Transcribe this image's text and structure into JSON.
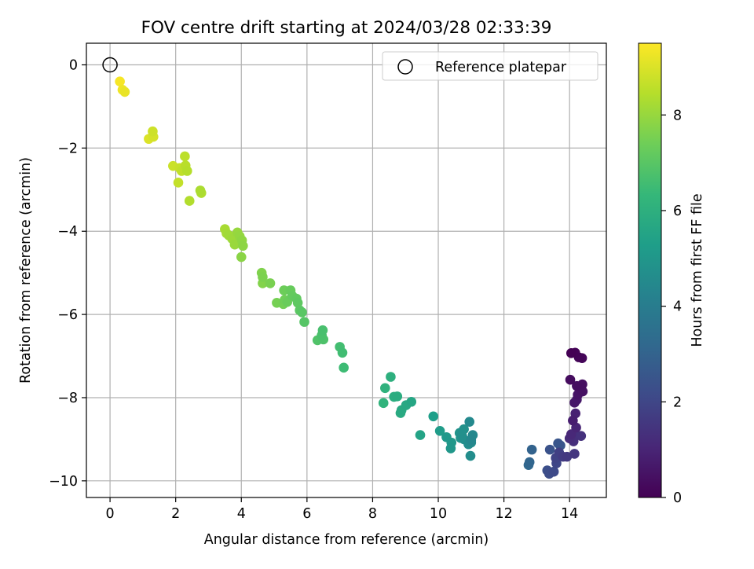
{
  "chart_data": {
    "type": "scatter",
    "title": "FOV centre drift starting at 2024/03/28 02:33:39",
    "xlabel": "Angular distance from reference (arcmin)",
    "ylabel": "Rotation from reference (arcmin)",
    "xlim": [
      -0.72,
      15.12
    ],
    "ylim": [
      -10.4,
      0.52
    ],
    "x_ticks": [
      "0",
      "2",
      "4",
      "6",
      "8",
      "10",
      "12",
      "14"
    ],
    "y_ticks": [
      "0",
      "−2",
      "−4",
      "−6",
      "−8",
      "−10"
    ],
    "grid": true,
    "legend": {
      "placement": "top-right",
      "entries": [
        "Reference platepar"
      ]
    },
    "reference_point": {
      "x": 0,
      "y": 0,
      "marker": "open circle"
    },
    "colorbar": {
      "label": "Hours from first FF file",
      "range": [
        0,
        9.5
      ],
      "ticks": [
        "0",
        "2",
        "4",
        "6",
        "8"
      ],
      "colormap": "viridis",
      "colors": [
        "#440154",
        "#482777",
        "#3e4a89",
        "#31688e",
        "#26828e",
        "#1f9e89",
        "#35b779",
        "#6ece58",
        "#b5de2b",
        "#fde725"
      ]
    },
    "series": [
      {
        "values_note": "",
        "points": [
          [
            14.05,
            -6.93
          ],
          [
            14.17,
            -6.92
          ],
          [
            14.28,
            -7.03
          ],
          [
            14.38,
            -7.05
          ],
          [
            14.22,
            -7.72
          ],
          [
            14.39,
            -7.68
          ],
          [
            14.4,
            -7.85
          ],
          [
            14.25,
            -7.93
          ],
          [
            14.02,
            -7.57
          ],
          [
            14.15,
            -8.12
          ],
          [
            14.22,
            -8.05
          ],
          [
            14.1,
            -8.55
          ],
          [
            14.18,
            -8.38
          ],
          [
            14.2,
            -8.72
          ],
          [
            14.05,
            -8.88
          ],
          [
            14.0,
            -8.98
          ],
          [
            14.12,
            -9.05
          ],
          [
            14.35,
            -8.92
          ],
          [
            14.2,
            -8.9
          ],
          [
            14.15,
            -9.35
          ],
          [
            13.92,
            -9.42
          ],
          [
            13.8,
            -9.42
          ],
          [
            13.68,
            -9.32
          ],
          [
            13.58,
            -9.45
          ],
          [
            13.6,
            -9.58
          ],
          [
            13.52,
            -9.78
          ],
          [
            13.38,
            -9.83
          ],
          [
            13.32,
            -9.75
          ],
          [
            13.4,
            -9.25
          ],
          [
            13.65,
            -9.1
          ],
          [
            13.72,
            -9.15
          ],
          [
            12.85,
            -9.25
          ],
          [
            12.78,
            -9.55
          ],
          [
            12.75,
            -9.62
          ],
          [
            11.0,
            -9.02
          ],
          [
            11.05,
            -8.9
          ],
          [
            10.95,
            -8.58
          ],
          [
            11.0,
            -9.08
          ],
          [
            10.92,
            -9.12
          ],
          [
            10.98,
            -9.4
          ],
          [
            10.78,
            -9.0
          ],
          [
            10.72,
            -8.9
          ],
          [
            10.78,
            -8.76
          ],
          [
            10.65,
            -8.85
          ],
          [
            10.68,
            -8.97
          ],
          [
            10.38,
            -9.22
          ],
          [
            10.4,
            -9.08
          ],
          [
            10.25,
            -8.95
          ],
          [
            10.05,
            -8.8
          ],
          [
            9.85,
            -8.45
          ],
          [
            9.45,
            -8.9
          ],
          [
            9.18,
            -8.1
          ],
          [
            9.02,
            -8.18
          ],
          [
            8.88,
            -8.3
          ],
          [
            8.85,
            -8.37
          ],
          [
            8.75,
            -7.97
          ],
          [
            8.65,
            -7.98
          ],
          [
            8.55,
            -7.5
          ],
          [
            8.38,
            -7.77
          ],
          [
            8.33,
            -8.13
          ],
          [
            7.12,
            -7.28
          ],
          [
            7.08,
            -6.92
          ],
          [
            7.0,
            -6.78
          ],
          [
            6.48,
            -6.38
          ],
          [
            6.45,
            -6.5
          ],
          [
            6.5,
            -6.6
          ],
          [
            6.32,
            -6.62
          ],
          [
            5.92,
            -6.18
          ],
          [
            5.85,
            -5.95
          ],
          [
            5.78,
            -5.9
          ],
          [
            5.72,
            -5.72
          ],
          [
            5.68,
            -5.62
          ],
          [
            5.55,
            -5.55
          ],
          [
            5.5,
            -5.42
          ],
          [
            5.4,
            -5.7
          ],
          [
            5.3,
            -5.42
          ],
          [
            5.32,
            -5.65
          ],
          [
            5.28,
            -5.75
          ],
          [
            5.08,
            -5.72
          ],
          [
            4.88,
            -5.25
          ],
          [
            4.65,
            -5.1
          ],
          [
            4.62,
            -5.0
          ],
          [
            4.65,
            -5.25
          ],
          [
            4.0,
            -4.62
          ],
          [
            4.05,
            -4.35
          ],
          [
            4.02,
            -4.22
          ],
          [
            3.95,
            -4.12
          ],
          [
            3.88,
            -4.03
          ],
          [
            3.8,
            -4.32
          ],
          [
            3.72,
            -4.18
          ],
          [
            3.62,
            -4.1
          ],
          [
            3.55,
            -4.05
          ],
          [
            3.5,
            -3.95
          ],
          [
            2.75,
            -3.02
          ],
          [
            2.78,
            -3.08
          ],
          [
            2.42,
            -3.27
          ],
          [
            2.35,
            -2.55
          ],
          [
            2.3,
            -2.42
          ],
          [
            2.28,
            -2.2
          ],
          [
            2.18,
            -2.55
          ],
          [
            2.08,
            -2.83
          ],
          [
            2.12,
            -2.48
          ],
          [
            1.92,
            -2.43
          ],
          [
            1.3,
            -1.6
          ],
          [
            1.32,
            -1.73
          ],
          [
            1.18,
            -1.78
          ],
          [
            0.45,
            -0.65
          ],
          [
            0.38,
            -0.6
          ],
          [
            0.3,
            -0.4
          ]
        ],
        "hours": [
          0.0,
          0.05,
          0.1,
          0.15,
          0.35,
          0.4,
          0.45,
          0.5,
          0.3,
          0.6,
          0.65,
          0.8,
          0.9,
          1.0,
          1.1,
          1.2,
          1.3,
          1.35,
          1.4,
          1.5,
          1.6,
          1.7,
          1.8,
          1.9,
          2.0,
          2.1,
          2.2,
          2.3,
          2.4,
          2.5,
          2.55,
          3.0,
          3.1,
          3.15,
          4.4,
          4.45,
          4.5,
          4.55,
          4.6,
          4.65,
          4.7,
          4.75,
          4.8,
          4.85,
          4.9,
          5.0,
          5.05,
          5.1,
          5.2,
          5.3,
          5.5,
          5.6,
          5.7,
          5.75,
          5.8,
          5.85,
          5.9,
          6.0,
          6.1,
          6.15,
          6.5,
          6.55,
          6.6,
          6.7,
          6.75,
          6.8,
          6.85,
          6.95,
          7.0,
          7.05,
          7.1,
          7.15,
          7.2,
          7.25,
          7.3,
          7.35,
          7.4,
          7.45,
          7.5,
          7.55,
          7.6,
          7.65,
          7.7,
          7.8,
          7.85,
          7.9,
          7.95,
          8.0,
          8.05,
          8.1,
          8.15,
          8.2,
          8.25,
          8.3,
          8.35,
          8.4,
          8.45,
          8.5,
          8.55,
          8.6,
          8.65,
          8.7,
          8.75,
          8.8,
          8.9,
          9.0,
          9.2,
          9.3,
          9.4
        ]
      }
    ]
  }
}
